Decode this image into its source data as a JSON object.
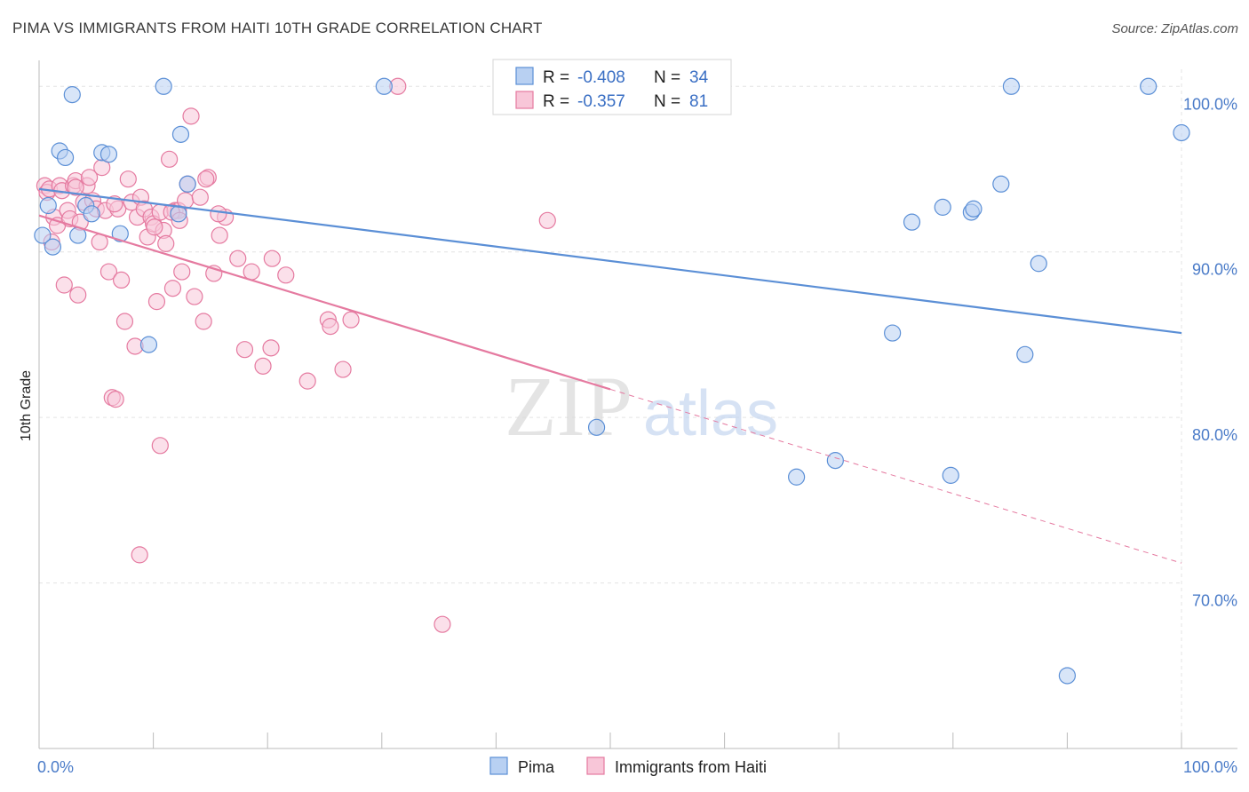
{
  "title": "PIMA VS IMMIGRANTS FROM HAITI 10TH GRADE CORRELATION CHART",
  "source": "Source: ZipAtlas.com",
  "watermark": {
    "zip": "ZIP",
    "atlas": "atlas"
  },
  "chart_data": {
    "type": "scatter",
    "xlabel": "",
    "ylabel": "10th Grade",
    "xlim": [
      0,
      100
    ],
    "ylim": [
      60,
      102
    ],
    "x_tick_labels": [
      "0.0%",
      "100.0%"
    ],
    "y_ticks": [
      {
        "value": 100,
        "label": "100.0%"
      },
      {
        "value": 90,
        "label": "90.0%"
      },
      {
        "value": 80,
        "label": "80.0%"
      },
      {
        "value": 70,
        "label": "70.0%"
      }
    ],
    "grid": true,
    "legend_position": "top-center",
    "legend": [
      {
        "r_label": "R =",
        "r_value": "-0.408",
        "n_label": "N =",
        "n_value": "34",
        "color": "#5b8fd6",
        "fill": "#b8d0f2"
      },
      {
        "r_label": "R =",
        "r_value": "-0.357",
        "n_label": "N =",
        "n_value": "81",
        "color": "#e57aa0",
        "fill": "#f8c6d8"
      }
    ],
    "series": [
      {
        "name": "Pima",
        "color": "#5b8fd6",
        "fill": "#b8d0f2",
        "trend": {
          "x0": 0,
          "y0": 93.8,
          "x1": 100,
          "y1": 85.1
        },
        "points": [
          [
            0.3,
            91
          ],
          [
            0.8,
            92.8
          ],
          [
            1.2,
            90.3
          ],
          [
            1.8,
            96.1
          ],
          [
            2.3,
            95.7
          ],
          [
            2.9,
            99.5
          ],
          [
            3.4,
            91
          ],
          [
            4.1,
            92.8
          ],
          [
            4.6,
            92.3
          ],
          [
            5.5,
            96
          ],
          [
            6.1,
            95.9
          ],
          [
            7.1,
            91.1
          ],
          [
            9.6,
            84.4
          ],
          [
            10.9,
            100
          ],
          [
            12.2,
            92.3
          ],
          [
            12.4,
            97.1
          ],
          [
            13.0,
            94.1
          ],
          [
            30.2,
            100
          ],
          [
            48.8,
            79.4
          ],
          [
            66.3,
            76.4
          ],
          [
            69.7,
            77.4
          ],
          [
            74.7,
            85.1
          ],
          [
            79.1,
            92.7
          ],
          [
            76.4,
            91.8
          ],
          [
            81.6,
            92.4
          ],
          [
            79.8,
            76.5
          ],
          [
            81.8,
            92.6
          ],
          [
            84.2,
            94.1
          ],
          [
            85.1,
            100
          ],
          [
            86.3,
            83.8
          ],
          [
            87.5,
            89.3
          ],
          [
            90.0,
            64.4
          ],
          [
            97.1,
            100
          ],
          [
            100.0,
            97.2
          ]
        ]
      },
      {
        "name": "Immigrants from Haiti",
        "color": "#e57aa0",
        "fill": "#f8c6d8",
        "trend": {
          "x0": 0,
          "y0": 92.2,
          "x1": 50,
          "y1": 81.7
        },
        "trend_dashed": {
          "x0": 50,
          "y0": 81.7,
          "x1": 100,
          "y1": 71.2
        },
        "points": [
          [
            0.5,
            94
          ],
          [
            0.7,
            93.6
          ],
          [
            0.9,
            93.8
          ],
          [
            1.1,
            90.6
          ],
          [
            1.3,
            92.1
          ],
          [
            1.6,
            91.6
          ],
          [
            1.8,
            94
          ],
          [
            2.0,
            93.7
          ],
          [
            2.2,
            88
          ],
          [
            2.5,
            92.5
          ],
          [
            2.7,
            92
          ],
          [
            3.0,
            94
          ],
          [
            3.2,
            94.3
          ],
          [
            3.4,
            87.4
          ],
          [
            3.6,
            91.8
          ],
          [
            3.9,
            93
          ],
          [
            4.2,
            94
          ],
          [
            4.4,
            94.5
          ],
          [
            4.7,
            93.1
          ],
          [
            5.0,
            92.6
          ],
          [
            5.3,
            90.6
          ],
          [
            5.5,
            95.1
          ],
          [
            5.8,
            92.5
          ],
          [
            6.1,
            88.8
          ],
          [
            6.4,
            81.2
          ],
          [
            6.7,
            81.1
          ],
          [
            6.9,
            92.6
          ],
          [
            7.2,
            88.3
          ],
          [
            7.5,
            85.8
          ],
          [
            7.8,
            94.4
          ],
          [
            8.1,
            93
          ],
          [
            8.4,
            84.3
          ],
          [
            8.6,
            92.1
          ],
          [
            8.9,
            93.3
          ],
          [
            9.2,
            92.6
          ],
          [
            9.5,
            90.9
          ],
          [
            9.8,
            92.1
          ],
          [
            10.0,
            91.7
          ],
          [
            10.3,
            87
          ],
          [
            10.6,
            92.4
          ],
          [
            10.9,
            91.3
          ],
          [
            11.1,
            90.5
          ],
          [
            11.4,
            95.6
          ],
          [
            11.7,
            87.8
          ],
          [
            11.9,
            92.5
          ],
          [
            12.2,
            92.5
          ],
          [
            12.5,
            88.8
          ],
          [
            12.8,
            93.1
          ],
          [
            13.0,
            94.1
          ],
          [
            13.3,
            98.2
          ],
          [
            13.6,
            87.3
          ],
          [
            14.1,
            93.3
          ],
          [
            14.4,
            85.8
          ],
          [
            14.8,
            94.5
          ],
          [
            15.3,
            88.7
          ],
          [
            15.8,
            91
          ],
          [
            16.3,
            92.1
          ],
          [
            17.4,
            89.6
          ],
          [
            18.0,
            84.1
          ],
          [
            18.6,
            88.8
          ],
          [
            19.6,
            83.1
          ],
          [
            20.3,
            84.2
          ],
          [
            20.4,
            89.6
          ],
          [
            21.6,
            88.6
          ],
          [
            23.5,
            82.2
          ],
          [
            25.3,
            85.9
          ],
          [
            25.5,
            85.5
          ],
          [
            26.6,
            82.9
          ],
          [
            27.3,
            85.9
          ],
          [
            31.4,
            100
          ],
          [
            44.5,
            91.9
          ],
          [
            8.8,
            71.7
          ],
          [
            10.6,
            78.3
          ],
          [
            35.3,
            67.5
          ],
          [
            14.6,
            94.4
          ],
          [
            6.6,
            92.9
          ],
          [
            11.6,
            92.4
          ],
          [
            3.2,
            93.9
          ],
          [
            10.1,
            91.5
          ],
          [
            12.3,
            91.9
          ],
          [
            15.7,
            92.3
          ]
        ]
      }
    ]
  },
  "bottom_legend": [
    {
      "label": "Pima",
      "color": "#5b8fd6",
      "fill": "#b8d0f2"
    },
    {
      "label": "Immigrants from Haiti",
      "color": "#e57aa0",
      "fill": "#f8c6d8"
    }
  ]
}
